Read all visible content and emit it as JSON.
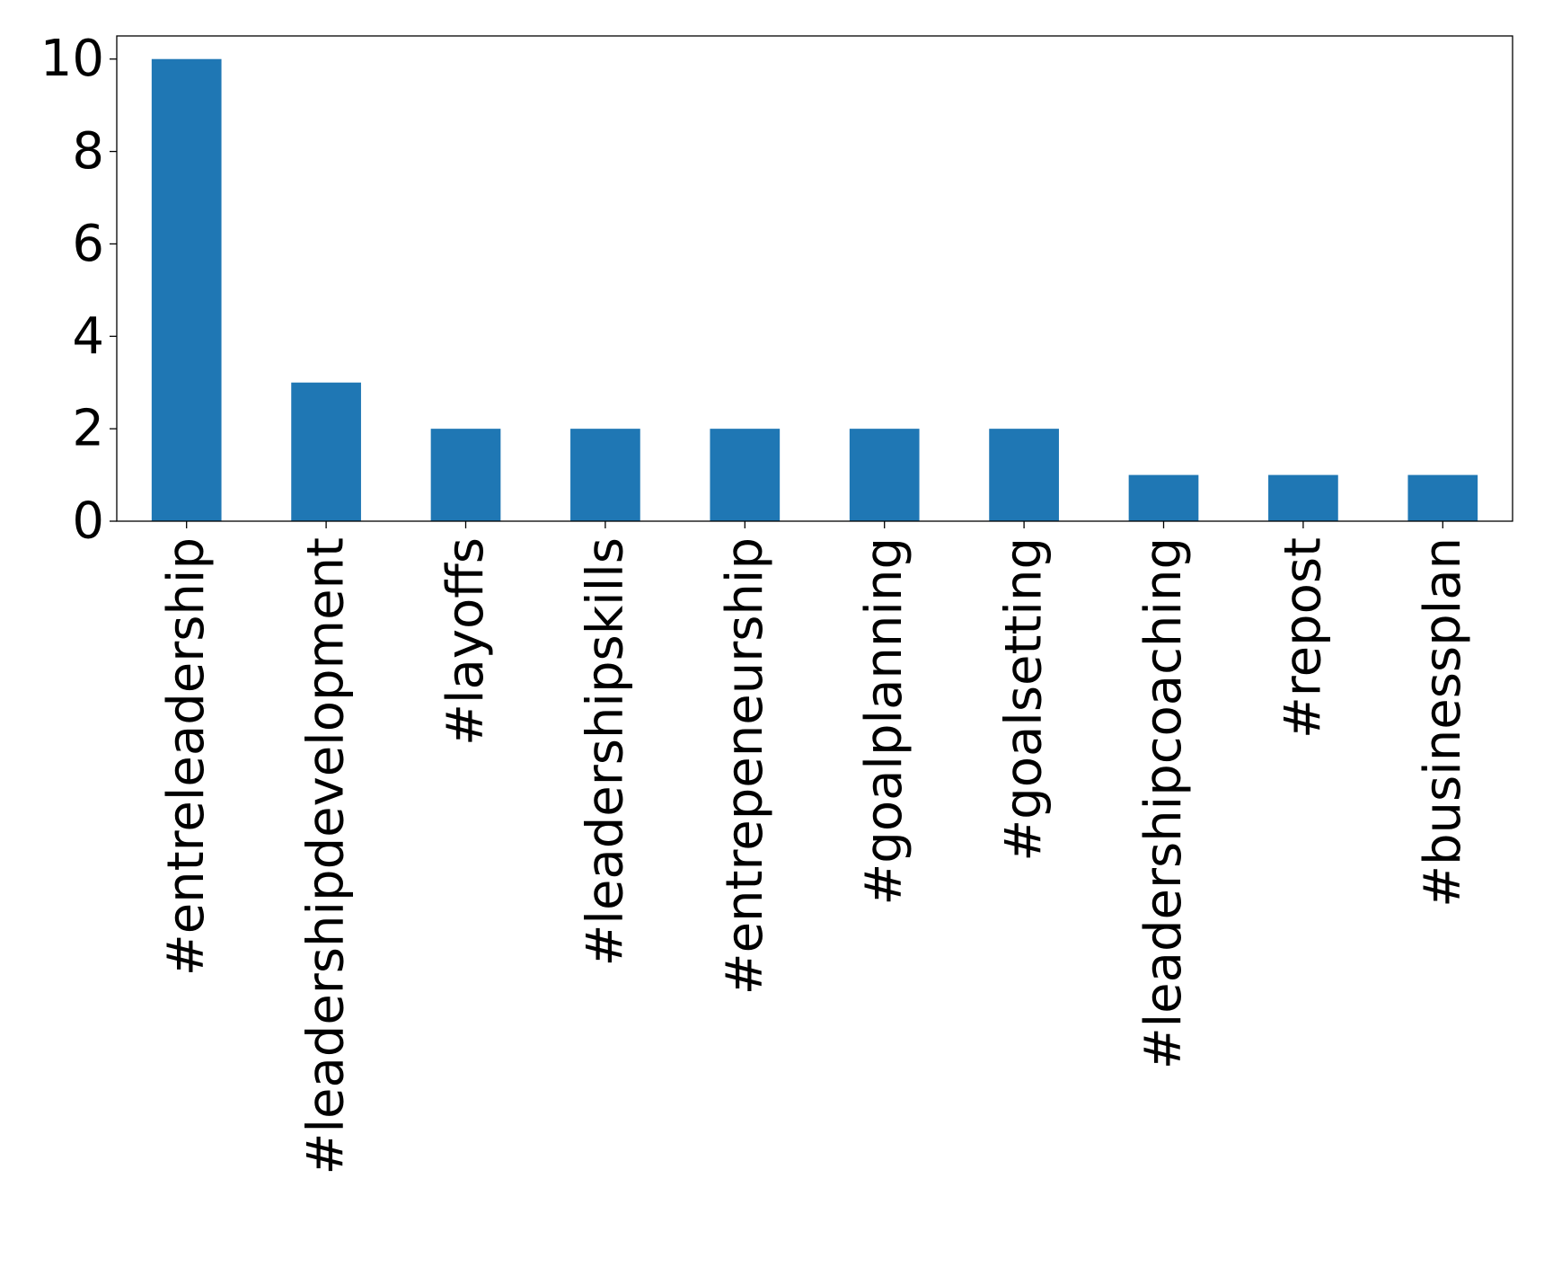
{
  "chart_data": {
    "type": "bar",
    "categories": [
      "#entreleadership",
      "#leadershipdevelopment",
      "#layoffs",
      "#leadershipskills",
      "#entrepeneurship",
      "#goalplanning",
      "#goalsetting",
      "#leadershipcoaching",
      "#repost",
      "#businessplan"
    ],
    "values": [
      10,
      3,
      2,
      2,
      2,
      2,
      2,
      1,
      1,
      1
    ],
    "title": "",
    "xlabel": "",
    "ylabel": "",
    "ylim": [
      0,
      10.5
    ],
    "yticks": [
      0,
      2,
      4,
      6,
      8,
      10
    ],
    "grid": false,
    "bar_color": "#1f77b4"
  }
}
